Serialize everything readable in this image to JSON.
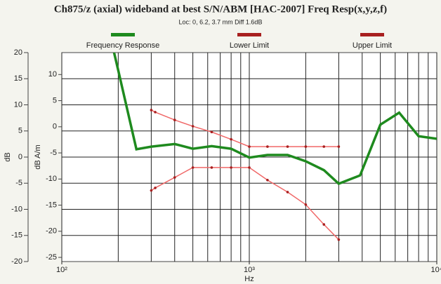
{
  "chart_data": {
    "type": "line",
    "title": "Ch875/z (axial) wideband at best S/N/ABM [HAC-2007] Freq Resp(x,y,z,f)",
    "subtitle": "Loc: 0, 6.2, 3.7 mm Diff 1.6dB",
    "xlabel": "Hz",
    "ylabel": "dB",
    "y2label": "dB A/m",
    "xscale": "log",
    "xlim": [
      100,
      10000
    ],
    "xticks": [
      {
        "value": 100,
        "label": "10²"
      },
      {
        "value": 1000,
        "label": "10³"
      },
      {
        "value": 10000,
        "label": "10⁴"
      }
    ],
    "ylim": [
      -20,
      20
    ],
    "yticks": [
      20,
      15,
      10,
      5,
      0,
      -5,
      -10,
      -15,
      -20
    ],
    "y2lim": [
      -25.8,
      14.2
    ],
    "y2ticks": [
      10,
      5,
      0,
      -5,
      -10,
      -15,
      -20,
      -25
    ],
    "grid": true,
    "legend": "top",
    "series": [
      {
        "name": "Frequency Response",
        "color": "#1e8a1e",
        "markers": false,
        "x": [
          190,
          200,
          250,
          300,
          400,
          500,
          630,
          800,
          1000,
          1250,
          1600,
          2000,
          2500,
          3000,
          3900,
          5000,
          6300,
          8000,
          10000
        ],
        "values": [
          20,
          16.6,
          1.5,
          2,
          2.5,
          1.6,
          2.1,
          1.6,
          -0.1,
          0.4,
          0.4,
          -0.8,
          -2.5,
          -5.1,
          -3.5,
          6.2,
          8.5,
          4,
          3.5
        ]
      },
      {
        "name": "Lower Limit",
        "color": "#a82020",
        "markers": true,
        "x": [
          300,
          315,
          400,
          500,
          630,
          800,
          1000,
          1250,
          1600,
          2000,
          2500,
          3000
        ],
        "values": [
          -6.4,
          -5.9,
          -3.9,
          -2.0,
          -2.0,
          -2.0,
          -2.0,
          -4.4,
          -6.7,
          -9.1,
          -12.9,
          -15.8
        ]
      },
      {
        "name": "Upper Limit",
        "color": "#a82020",
        "markers": true,
        "x": [
          300,
          315,
          400,
          500,
          630,
          800,
          1000,
          1250,
          1600,
          2000,
          2500,
          3000
        ],
        "values": [
          9.0,
          8.6,
          7.1,
          5.9,
          4.8,
          3.4,
          2.0,
          2.0,
          2.0,
          2.0,
          2.0,
          2.0
        ]
      }
    ]
  }
}
